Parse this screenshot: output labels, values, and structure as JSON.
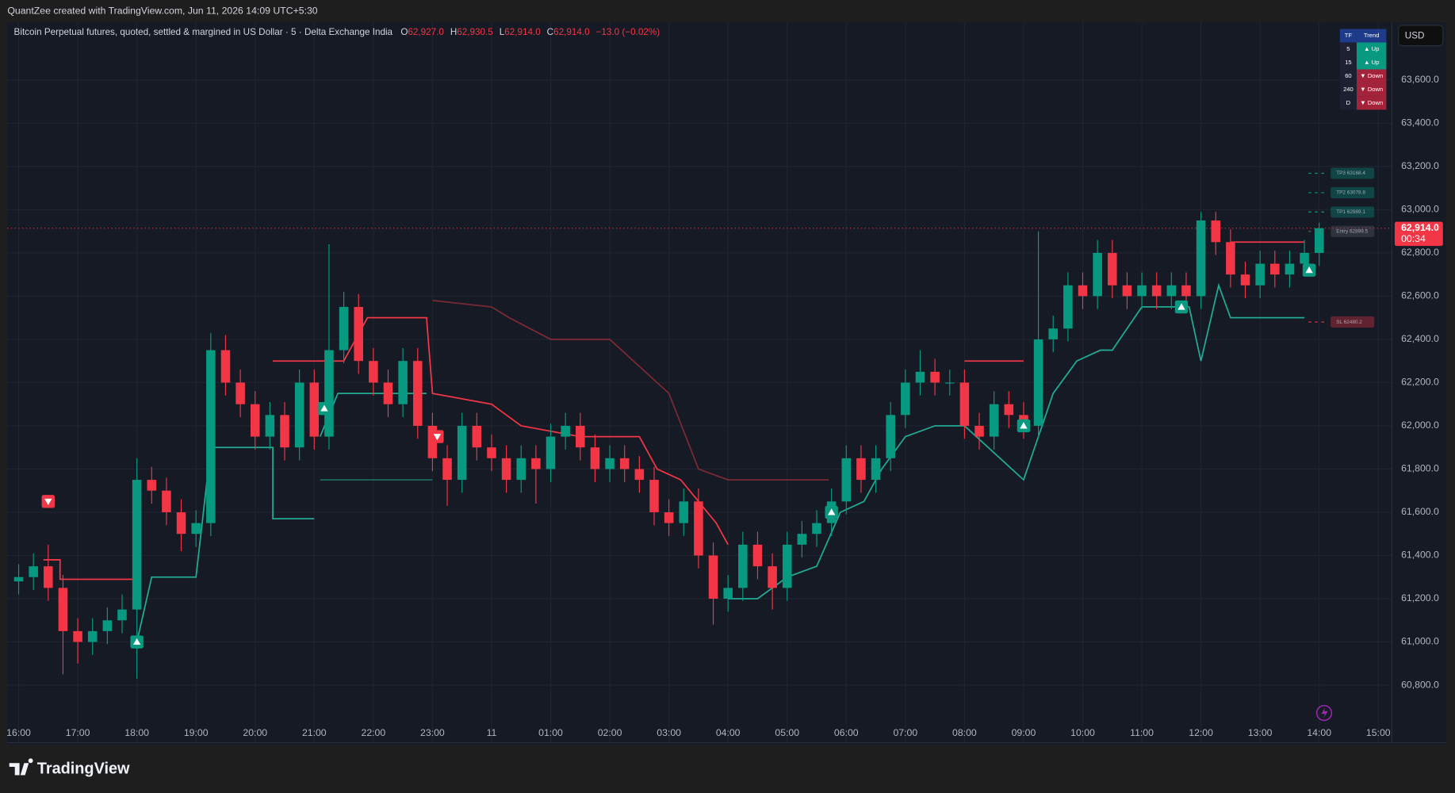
{
  "header": {
    "credit": "QuantZee created with TradingView.com, Jun 11, 2026 14:09 UTC+5:30",
    "currency": "USD"
  },
  "footer": {
    "logo": "TradingView"
  },
  "chart_data": {
    "type": "candlestick",
    "title": "Bitcoin Perpetual futures, quoted, settled & margined in US Dollar · 5 · Delta Exchange India",
    "ohlc": {
      "o_label": "O",
      "o": "62,927.0",
      "h_label": "H",
      "h": "62,930.5",
      "l_label": "L",
      "l": "62,914.0",
      "c_label": "C",
      "c": "62,914.0",
      "change": "−13.0 (−0.02%)"
    },
    "up_color": "#089981",
    "down_color": "#f23645",
    "grid": true,
    "xlim": [
      -0.19,
      23.23
    ],
    "ylim": [
      60534,
      63866
    ],
    "xticks": [
      {
        "value": 0,
        "label": "16:00"
      },
      {
        "value": 1,
        "label": "17:00"
      },
      {
        "value": 2,
        "label": "18:00"
      },
      {
        "value": 3,
        "label": "19:00"
      },
      {
        "value": 4,
        "label": "20:00"
      },
      {
        "value": 5,
        "label": "21:00"
      },
      {
        "value": 6,
        "label": "22:00"
      },
      {
        "value": 7,
        "label": "23:00"
      },
      {
        "value": 8,
        "label": "11"
      },
      {
        "value": 9,
        "label": "01:00"
      },
      {
        "value": 10,
        "label": "02:00"
      },
      {
        "value": 11,
        "label": "03:00"
      },
      {
        "value": 12,
        "label": "04:00"
      },
      {
        "value": 13,
        "label": "05:00"
      },
      {
        "value": 14,
        "label": "06:00"
      },
      {
        "value": 15,
        "label": "07:00"
      },
      {
        "value": 16,
        "label": "08:00"
      },
      {
        "value": 17,
        "label": "09:00"
      },
      {
        "value": 18,
        "label": "10:00"
      },
      {
        "value": 19,
        "label": "11:00"
      },
      {
        "value": 20,
        "label": "12:00"
      },
      {
        "value": 21,
        "label": "13:00"
      },
      {
        "value": 22,
        "label": "14:00"
      },
      {
        "value": 23,
        "label": "15:00"
      }
    ],
    "yticks": [
      {
        "value": 60800,
        "label": "60,800.0"
      },
      {
        "value": 61000,
        "label": "61,000.0"
      },
      {
        "value": 61200,
        "label": "61,200.0"
      },
      {
        "value": 61400,
        "label": "61,400.0"
      },
      {
        "value": 61600,
        "label": "61,600.0"
      },
      {
        "value": 61800,
        "label": "61,800.0"
      },
      {
        "value": 62000,
        "label": "62,000.0"
      },
      {
        "value": 62200,
        "label": "62,200.0"
      },
      {
        "value": 62400,
        "label": "62,400.0"
      },
      {
        "value": 62600,
        "label": "62,600.0"
      },
      {
        "value": 62800,
        "label": "62,800.0"
      },
      {
        "value": 63000,
        "label": "63,000.0"
      },
      {
        "value": 63200,
        "label": "63,200.0"
      },
      {
        "value": 63400,
        "label": "63,400.0"
      },
      {
        "value": 63600,
        "label": "63,600.0"
      }
    ],
    "x": [
      0,
      0.25,
      0.5,
      0.75,
      1,
      1.25,
      1.5,
      1.75,
      2,
      2.25,
      2.5,
      2.75,
      3,
      3.25,
      3.5,
      3.75,
      4,
      4.25,
      4.5,
      4.75,
      5,
      5.25,
      5.5,
      5.75,
      6,
      6.25,
      6.5,
      6.75,
      7,
      7.25,
      7.5,
      7.75,
      8,
      8.25,
      8.5,
      8.75,
      9,
      9.25,
      9.5,
      9.75,
      10,
      10.25,
      10.5,
      10.75,
      11,
      11.25,
      11.5,
      11.75,
      12,
      12.25,
      12.5,
      12.75,
      13,
      13.25,
      13.5,
      13.75,
      14,
      14.25,
      14.5,
      14.75,
      15,
      15.25,
      15.5,
      15.75,
      16,
      16.25,
      16.5,
      16.75,
      17,
      17.25,
      17.5,
      17.75,
      18,
      18.25,
      18.5,
      18.75,
      19,
      19.25,
      19.5,
      19.75,
      20,
      20.25,
      20.5,
      20.75,
      21,
      21.25,
      21.5,
      21.75,
      22
    ],
    "open": [
      61280,
      61300,
      61350,
      61250,
      61050,
      61000,
      61050,
      61100,
      61150,
      61750,
      61700,
      61600,
      61500,
      61550,
      62350,
      62200,
      62100,
      61950,
      62050,
      61900,
      62200,
      61950,
      62350,
      62550,
      62300,
      62200,
      62100,
      62300,
      62000,
      61850,
      61750,
      62000,
      61900,
      61850,
      61750,
      61850,
      61800,
      61950,
      62000,
      61900,
      61800,
      61850,
      61800,
      61750,
      61600,
      61550,
      61650,
      61400,
      61200,
      61250,
      61450,
      61350,
      61250,
      61450,
      61500,
      61550,
      61650,
      61850,
      61750,
      61850,
      62050,
      62200,
      62250,
      62200,
      62200,
      62000,
      61950,
      62100,
      62050,
      62000,
      62400,
      62450,
      62650,
      62600,
      62800,
      62650,
      62600,
      62650,
      62600,
      62650,
      62600,
      62950,
      62850,
      62700,
      62650,
      62750,
      62700,
      62750,
      62800
    ],
    "high": [
      61360,
      61410,
      61450,
      61310,
      61110,
      61110,
      61160,
      61220,
      61850,
      61810,
      61760,
      61660,
      61610,
      62430,
      62420,
      62260,
      62160,
      62110,
      62110,
      62260,
      62260,
      62840,
      62620,
      62610,
      62360,
      62260,
      62360,
      62360,
      62060,
      61910,
      62060,
      62060,
      61960,
      61910,
      61910,
      61910,
      62010,
      62060,
      62060,
      61960,
      61910,
      61910,
      61860,
      61810,
      61660,
      61710,
      61710,
      61460,
      61310,
      61510,
      61510,
      61410,
      61510,
      61560,
      61610,
      61710,
      61910,
      61910,
      61910,
      62110,
      62260,
      62350,
      62310,
      62260,
      62260,
      62060,
      62160,
      62160,
      62110,
      62900,
      62510,
      62710,
      62710,
      62860,
      62860,
      62710,
      62710,
      62710,
      62710,
      62710,
      62990,
      62990,
      62910,
      62760,
      62810,
      62810,
      62810,
      62860,
      62940
    ],
    "low": [
      61220,
      61240,
      61190,
      60850,
      60900,
      60940,
      60990,
      61040,
      60830,
      61640,
      61540,
      61420,
      61440,
      61490,
      62140,
      62040,
      61890,
      61890,
      61840,
      61840,
      61890,
      61890,
      62290,
      62240,
      62140,
      62040,
      62040,
      61940,
      61790,
      61630,
      61690,
      61840,
      61790,
      61690,
      61690,
      61640,
      61740,
      61890,
      61840,
      61740,
      61740,
      61740,
      61690,
      61540,
      61490,
      61490,
      61340,
      61080,
      61140,
      61190,
      61290,
      61150,
      61190,
      61390,
      61440,
      61490,
      61590,
      61690,
      61690,
      61790,
      61990,
      62140,
      62140,
      62140,
      61940,
      61890,
      61890,
      61990,
      61940,
      61940,
      62340,
      62390,
      62540,
      62540,
      62590,
      62540,
      62540,
      62540,
      62540,
      62540,
      62540,
      62790,
      62640,
      62590,
      62590,
      62640,
      62640,
      62690,
      62740
    ],
    "close": [
      61300,
      61350,
      61250,
      61050,
      61000,
      61050,
      61100,
      61150,
      61750,
      61700,
      61600,
      61500,
      61550,
      62350,
      62200,
      62100,
      61950,
      62050,
      61900,
      62200,
      61950,
      62350,
      62550,
      62300,
      62200,
      62100,
      62300,
      62000,
      61850,
      61750,
      62000,
      61900,
      61850,
      61750,
      61850,
      61800,
      61950,
      62000,
      61900,
      61800,
      61850,
      61800,
      61750,
      61600,
      61550,
      61650,
      61400,
      61200,
      61250,
      61450,
      61350,
      61250,
      61450,
      61500,
      61550,
      61650,
      61850,
      61750,
      61850,
      62050,
      62200,
      62250,
      62200,
      62200,
      62000,
      61950,
      62100,
      62050,
      62000,
      62400,
      62450,
      62650,
      62600,
      62800,
      62650,
      62600,
      62650,
      62600,
      62650,
      62600,
      62950,
      62850,
      62700,
      62650,
      62750,
      62700,
      62750,
      62800,
      62914
    ],
    "overlays": [
      {
        "color": "#f23645",
        "x": [
          0.42,
          0.7,
          0.7,
          2.0
        ],
        "values": [
          61380,
          61380,
          61290,
          61290
        ]
      },
      {
        "color": "#f23645",
        "x": [
          4.3,
          5.5,
          5.9,
          6.9,
          7.0,
          8.0,
          8.5,
          9.5,
          10.5,
          10.8,
          11.2,
          11.8,
          12.0
        ],
        "values": [
          62300,
          62300,
          62500,
          62500,
          62150,
          62100,
          62000,
          61950,
          61950,
          61800,
          61750,
          61550,
          61450
        ]
      },
      {
        "color": "#7a2a33",
        "x": [
          7.0,
          8.0,
          8.3,
          9.0,
          10.0,
          11.0,
          11.5,
          12.0,
          13.7
        ],
        "values": [
          62580,
          62550,
          62500,
          62400,
          62400,
          62150,
          61800,
          61750,
          61750
        ]
      },
      {
        "color": "#f23645",
        "x": [
          16.0,
          17.0
        ],
        "values": [
          62300,
          62300
        ]
      },
      {
        "color": "#f23645",
        "x": [
          20.5,
          21.75
        ],
        "values": [
          62850,
          62850
        ]
      },
      {
        "color": "#22ab94",
        "x": [
          2.0,
          2.25,
          3.0,
          3.25,
          4.3,
          4.3,
          5.0
        ],
        "values": [
          61000,
          61300,
          61300,
          61900,
          61900,
          61570,
          61570
        ]
      },
      {
        "color": "#22ab94",
        "x": [
          5.1,
          5.4,
          6.9
        ],
        "values": [
          61950,
          62150,
          62150
        ]
      },
      {
        "color": "#1b6b5f",
        "x": [
          5.1,
          7.0
        ],
        "values": [
          61750,
          61750
        ]
      },
      {
        "color": "#22ab94",
        "x": [
          12.0,
          12.5,
          13.0,
          13.5,
          13.9,
          14.3,
          14.6,
          15.0,
          15.5,
          15.9,
          16.0,
          17.0,
          17.5,
          17.9,
          18.3,
          18.5,
          19.0,
          19.8,
          20.0,
          20.3,
          20.5,
          21.75
        ],
        "values": [
          61200,
          61200,
          61300,
          61350,
          61600,
          61650,
          61800,
          61950,
          62000,
          62000,
          62000,
          61750,
          62150,
          62300,
          62350,
          62350,
          62550,
          62550,
          62300,
          62650,
          62500,
          62500
        ]
      }
    ],
    "signals": [
      {
        "side": "sell",
        "x": 0.5,
        "value": 61650
      },
      {
        "side": "buy",
        "x": 2.0,
        "value": 61000
      },
      {
        "side": "buy",
        "x": 5.17,
        "value": 62080
      },
      {
        "side": "sell",
        "x": 7.08,
        "value": 61950
      },
      {
        "side": "buy",
        "x": 13.75,
        "value": 61600
      },
      {
        "side": "buy",
        "x": 17.0,
        "value": 62000
      },
      {
        "side": "buy",
        "x": 19.67,
        "value": 62550
      },
      {
        "side": "buy",
        "x": 21.83,
        "value": 62720
      }
    ],
    "levels": [
      {
        "label": "TP3  63168.4",
        "value": 63168.4,
        "color": "#089981"
      },
      {
        "label": "TP2  63078.8",
        "value": 63078.8,
        "color": "#089981"
      },
      {
        "label": "TP1  62989.1",
        "value": 62989.1,
        "color": "#089981"
      },
      {
        "label": "Entry  62899.5",
        "value": 62899.5,
        "color": "#5d606b"
      },
      {
        "label": "SL  62480.2",
        "value": 62480.2,
        "color": "#f23645"
      }
    ],
    "last_price": {
      "value": 62914,
      "label": "62,914.0",
      "countdown": "00:34",
      "color": "#f23645"
    },
    "trend_table": {
      "header": [
        "TF",
        "Trend"
      ],
      "rows": [
        {
          "tf": "5",
          "trend": "▲ Up",
          "color": "#089981"
        },
        {
          "tf": "15",
          "trend": "▲ Up",
          "color": "#089981"
        },
        {
          "tf": "60",
          "trend": "▼ Down",
          "color": "#a3243a"
        },
        {
          "tf": "240",
          "trend": "▼ Down",
          "color": "#a3243a"
        },
        {
          "tf": "D",
          "trend": "▼ Down",
          "color": "#a3243a"
        }
      ]
    }
  }
}
